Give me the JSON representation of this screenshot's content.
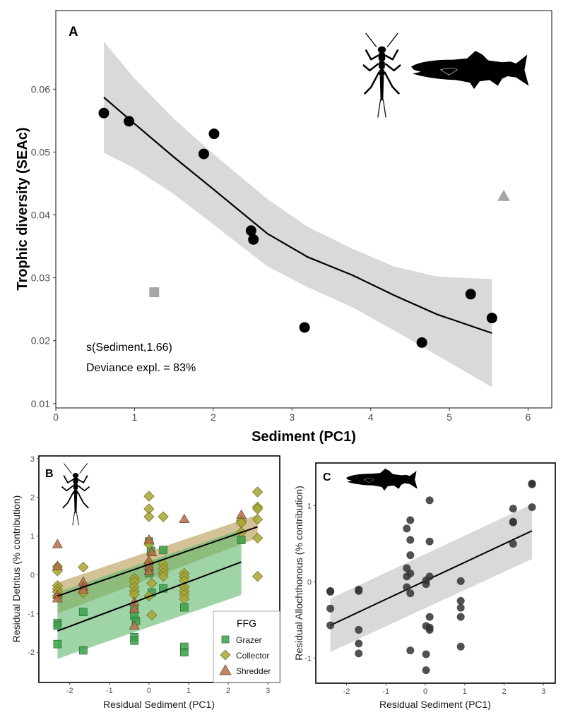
{
  "chart_data": [
    {
      "id": "A",
      "type": "scatter",
      "panel_label": "A",
      "xlabel": "Sediment (PC1)",
      "ylabel": "Trophic diversity (SEAc)",
      "xlim": [
        0,
        6.3
      ],
      "ylim": [
        0.0093,
        0.0725
      ],
      "x_ticks": [
        0,
        1,
        2,
        3,
        4,
        5,
        6
      ],
      "x_tick_labels": [
        "0",
        "1",
        "2",
        "3",
        "4",
        "5",
        "6"
      ],
      "y_ticks": [
        0.01,
        0.02,
        0.03,
        0.04,
        0.05,
        0.06
      ],
      "y_tick_labels": [
        "0.01",
        "0.02",
        "0.03",
        "0.04",
        "0.05",
        "0.06"
      ],
      "grid": false,
      "icons": [
        "stonefly-silhouette",
        "salmon-silhouette"
      ],
      "annotations": [
        "s(Sediment,1.66)",
        "Deviance expl. = 83%"
      ],
      "points": [
        {
          "x": 0.61,
          "y": 0.0562
        },
        {
          "x": 0.93,
          "y": 0.0549
        },
        {
          "x": 1.88,
          "y": 0.0497
        },
        {
          "x": 2.01,
          "y": 0.0529
        },
        {
          "x": 2.48,
          "y": 0.0375
        },
        {
          "x": 2.51,
          "y": 0.0361
        },
        {
          "x": 3.16,
          "y": 0.0221
        },
        {
          "x": 4.65,
          "y": 0.0197
        },
        {
          "x": 5.27,
          "y": 0.0274
        },
        {
          "x": 5.54,
          "y": 0.0236
        }
      ],
      "excluded_points": [
        {
          "x": 1.25,
          "y": 0.0277,
          "shape": "square",
          "color": "#a6a6a6"
        },
        {
          "x": 5.69,
          "y": 0.043,
          "shape": "triangle",
          "color": "#a6a6a6"
        }
      ],
      "fit": {
        "type": "gam",
        "x": [
          0.61,
          1.0,
          1.5,
          2.0,
          2.69,
          3.2,
          3.77,
          4.3,
          4.84,
          5.54
        ],
        "y": [
          0.0587,
          0.0545,
          0.0492,
          0.0441,
          0.037,
          0.0333,
          0.0304,
          0.0272,
          0.0242,
          0.0212
        ],
        "lower": [
          0.0499,
          0.0474,
          0.0433,
          0.0385,
          0.0318,
          0.0285,
          0.0253,
          0.0216,
          0.0177,
          0.0126
        ],
        "upper": [
          0.0676,
          0.0617,
          0.0553,
          0.0497,
          0.0425,
          0.0381,
          0.0346,
          0.0318,
          0.0302,
          0.0298
        ]
      },
      "colors": {
        "points": "#000000",
        "band": "#d9d9d9",
        "line": "#000000"
      }
    },
    {
      "id": "B",
      "type": "scatter",
      "panel_label": "B",
      "xlabel": "Residual Sediment (PC1)",
      "ylabel": "Residual Detritus (% contribution)",
      "xlim": [
        -2.78,
        3.3
      ],
      "ylim": [
        -2.78,
        3.07
      ],
      "x_ticks": [
        -2,
        -1,
        0,
        1,
        2,
        3
      ],
      "x_tick_labels": [
        "-2",
        "-1",
        "0",
        "1",
        "2",
        "3"
      ],
      "y_ticks": [
        -2,
        -1,
        0,
        1,
        2,
        3
      ],
      "y_tick_labels": [
        "-2",
        "-1",
        "0",
        "1",
        "2",
        "3"
      ],
      "grid": false,
      "icons": [
        "stonefly-silhouette"
      ],
      "legend": {
        "title": "FFG",
        "position": "bottom-right",
        "entries": [
          {
            "label": "Grazer",
            "shape": "square",
            "color": "#3aa14a"
          },
          {
            "label": "Collector",
            "shape": "diamond",
            "color": "#a9a732"
          },
          {
            "label": "Shredder",
            "shape": "triangle",
            "color": "#b56e48"
          }
        ]
      },
      "series": [
        {
          "name": "Grazer",
          "shape": "square",
          "points": [
            {
              "x": -2.31,
              "y": -1.25
            },
            {
              "x": -2.31,
              "y": -1.31
            },
            {
              "x": -2.31,
              "y": -1.79
            },
            {
              "x": -1.66,
              "y": -0.96
            },
            {
              "x": -1.66,
              "y": -1.95
            },
            {
              "x": -0.37,
              "y": -0.88
            },
            {
              "x": -0.37,
              "y": -1.06
            },
            {
              "x": -0.33,
              "y": -1.19
            },
            {
              "x": -0.37,
              "y": -1.61
            },
            {
              "x": -0.37,
              "y": -1.7
            },
            {
              "x": 0.0,
              "y": 0.86
            },
            {
              "x": 0.05,
              "y": 0.62
            },
            {
              "x": 0.0,
              "y": 0.15
            },
            {
              "x": 0.0,
              "y": 0.05
            },
            {
              "x": 0.07,
              "y": -0.46
            },
            {
              "x": 0.36,
              "y": 0.64
            },
            {
              "x": 0.36,
              "y": -0.35
            },
            {
              "x": 0.89,
              "y": -0.84
            },
            {
              "x": 0.89,
              "y": -1.86
            },
            {
              "x": 0.89,
              "y": -2.0
            },
            {
              "x": 2.33,
              "y": 0.9
            }
          ]
        },
        {
          "name": "Collector",
          "shape": "diamond",
          "points": [
            {
              "x": -2.31,
              "y": 0.21
            },
            {
              "x": -2.31,
              "y": 0.1
            },
            {
              "x": -2.31,
              "y": -0.28
            },
            {
              "x": -2.31,
              "y": -0.37
            },
            {
              "x": -2.31,
              "y": -0.44
            },
            {
              "x": -2.31,
              "y": -0.55
            },
            {
              "x": -1.66,
              "y": 0.2
            },
            {
              "x": -1.66,
              "y": -0.46
            },
            {
              "x": -0.37,
              "y": -0.09
            },
            {
              "x": -0.37,
              "y": -0.18
            },
            {
              "x": -0.37,
              "y": -0.31
            },
            {
              "x": -0.37,
              "y": -0.42
            },
            {
              "x": -0.37,
              "y": -0.51
            },
            {
              "x": 0.0,
              "y": 2.03
            },
            {
              "x": 0.0,
              "y": 1.7
            },
            {
              "x": 0.0,
              "y": 1.5
            },
            {
              "x": 0.0,
              "y": 0.79
            },
            {
              "x": 0.0,
              "y": 0.31
            },
            {
              "x": 0.07,
              "y": -0.22
            },
            {
              "x": 0.0,
              "y": -0.55
            },
            {
              "x": 0.07,
              "y": -1.04
            },
            {
              "x": 0.36,
              "y": 1.5
            },
            {
              "x": 0.36,
              "y": 0.27
            },
            {
              "x": 0.36,
              "y": 0.16
            },
            {
              "x": 0.36,
              "y": 0.05
            },
            {
              "x": 0.36,
              "y": -0.04
            },
            {
              "x": 0.89,
              "y": 0.04
            },
            {
              "x": 0.89,
              "y": -0.05
            },
            {
              "x": 0.89,
              "y": -0.15
            },
            {
              "x": 0.89,
              "y": -0.31
            },
            {
              "x": 0.89,
              "y": -0.42
            },
            {
              "x": 0.89,
              "y": -0.51
            },
            {
              "x": 0.89,
              "y": -0.62
            },
            {
              "x": 2.33,
              "y": 1.4
            },
            {
              "x": 2.33,
              "y": 1.34
            },
            {
              "x": 2.33,
              "y": 1.1
            },
            {
              "x": 2.74,
              "y": 2.14
            },
            {
              "x": 2.74,
              "y": 1.75
            },
            {
              "x": 2.74,
              "y": 1.7
            },
            {
              "x": 2.74,
              "y": 1.43
            },
            {
              "x": 2.74,
              "y": 0.95
            },
            {
              "x": 2.74,
              "y": -0.04
            }
          ]
        },
        {
          "name": "Shredder",
          "shape": "triangle",
          "points": [
            {
              "x": -2.31,
              "y": 0.79
            },
            {
              "x": -2.31,
              "y": 0.23
            },
            {
              "x": -2.31,
              "y": -0.52
            },
            {
              "x": -2.31,
              "y": -0.61
            },
            {
              "x": -1.66,
              "y": -0.18
            },
            {
              "x": -1.66,
              "y": -0.3
            },
            {
              "x": -1.66,
              "y": -0.38
            },
            {
              "x": -0.37,
              "y": -0.7
            },
            {
              "x": -0.37,
              "y": -0.88
            },
            {
              "x": -0.37,
              "y": -1.31
            },
            {
              "x": 0.0,
              "y": 0.91
            },
            {
              "x": 0.07,
              "y": 0.58
            },
            {
              "x": 0.0,
              "y": 0.37
            },
            {
              "x": 0.0,
              "y": 0.22
            },
            {
              "x": 0.0,
              "y": 0.09
            },
            {
              "x": 0.89,
              "y": 1.44
            },
            {
              "x": 2.33,
              "y": 1.55
            }
          ]
        }
      ],
      "fits": [
        {
          "name": "Collector/Shredder",
          "x": [
            -2.31,
            2.74
          ],
          "y": [
            -0.55,
            1.24
          ],
          "lower": [
            -1.0,
            0.95
          ],
          "upper": [
            -0.2,
            1.55
          ],
          "band_color": "#b59a4e"
        },
        {
          "name": "Grazer",
          "x": [
            -2.31,
            2.33
          ],
          "y": [
            -1.45,
            0.33
          ],
          "lower": [
            -2.17,
            -0.52
          ],
          "upper": [
            -0.45,
            1.17
          ],
          "band_color": "#5fb86c"
        }
      ]
    },
    {
      "id": "C",
      "type": "scatter",
      "panel_label": "C",
      "xlabel": "Residual Sediment (PC1)",
      "ylabel": "Residual Allochthonous (% contribution)",
      "xlim": [
        -2.78,
        3.3
      ],
      "ylim": [
        -1.33,
        1.56
      ],
      "x_ticks": [
        -2,
        -1,
        0,
        1,
        2,
        3
      ],
      "x_tick_labels": [
        "-2",
        "-1",
        "0",
        "1",
        "2",
        "3"
      ],
      "y_ticks": [
        -1,
        0,
        1
      ],
      "y_tick_labels": [
        "-1",
        "0",
        "1"
      ],
      "grid": false,
      "icons": [
        "salmon-silhouette"
      ],
      "points": [
        {
          "x": -2.41,
          "y": -0.12
        },
        {
          "x": -2.41,
          "y": -0.13
        },
        {
          "x": -2.41,
          "y": -0.35
        },
        {
          "x": -2.41,
          "y": -0.57
        },
        {
          "x": -1.69,
          "y": -0.1
        },
        {
          "x": -1.69,
          "y": -0.12
        },
        {
          "x": -1.69,
          "y": -0.63
        },
        {
          "x": -1.69,
          "y": -0.81
        },
        {
          "x": -1.69,
          "y": -0.94
        },
        {
          "x": -0.47,
          "y": 0.7
        },
        {
          "x": -0.47,
          "y": 0.18
        },
        {
          "x": -0.47,
          "y": 0.07
        },
        {
          "x": -0.47,
          "y": -0.07
        },
        {
          "x": -0.38,
          "y": 0.81
        },
        {
          "x": -0.38,
          "y": 0.55
        },
        {
          "x": -0.38,
          "y": 0.35
        },
        {
          "x": -0.38,
          "y": 0.11
        },
        {
          "x": -0.38,
          "y": -0.15
        },
        {
          "x": -0.38,
          "y": -0.9
        },
        {
          "x": 0.02,
          "y": 0.02
        },
        {
          "x": 0.02,
          "y": -0.03
        },
        {
          "x": 0.02,
          "y": -0.58
        },
        {
          "x": 0.02,
          "y": -0.95
        },
        {
          "x": 0.02,
          "y": -1.16
        },
        {
          "x": 0.11,
          "y": 1.07
        },
        {
          "x": 0.11,
          "y": 0.53
        },
        {
          "x": 0.11,
          "y": 0.07
        },
        {
          "x": 0.11,
          "y": -0.46
        },
        {
          "x": 0.11,
          "y": -0.6
        },
        {
          "x": 0.11,
          "y": -0.63
        },
        {
          "x": 0.9,
          "y": 0.01
        },
        {
          "x": 0.9,
          "y": -0.25
        },
        {
          "x": 0.9,
          "y": -0.34
        },
        {
          "x": 0.9,
          "y": -0.46
        },
        {
          "x": 0.9,
          "y": -0.85
        },
        {
          "x": 2.23,
          "y": 0.96
        },
        {
          "x": 2.23,
          "y": 0.79
        },
        {
          "x": 2.23,
          "y": 0.78
        },
        {
          "x": 2.23,
          "y": 0.5
        },
        {
          "x": 2.71,
          "y": 1.29
        },
        {
          "x": 2.71,
          "y": 1.28
        },
        {
          "x": 2.71,
          "y": 0.98
        }
      ],
      "fit": {
        "x": [
          -2.41,
          2.71
        ],
        "y": [
          -0.57,
          0.67
        ],
        "lower": [
          -0.92,
          0.3
        ],
        "upper": [
          -0.22,
          1.02
        ]
      },
      "colors": {
        "points": "#333333",
        "band": "#d9d9d9",
        "line": "#000000"
      }
    }
  ]
}
